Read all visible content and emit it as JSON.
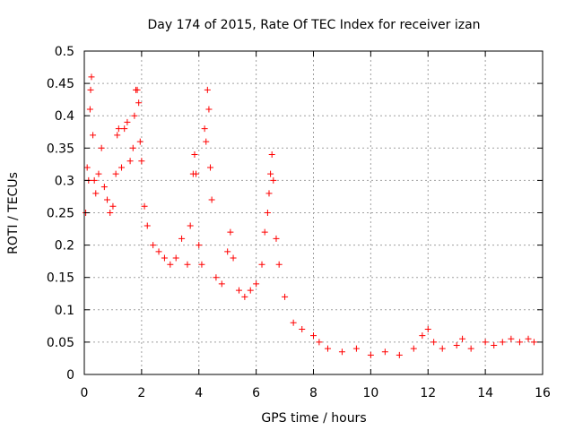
{
  "chart_data": {
    "type": "scatter",
    "title": "Day 174 of 2015, Rate Of TEC Index for receiver izan",
    "xlabel": "GPS time / hours",
    "ylabel": "ROTI / TECUs",
    "xlim": [
      0,
      16
    ],
    "ylim": [
      0,
      0.5
    ],
    "xticks": [
      0,
      2,
      4,
      6,
      8,
      10,
      12,
      14,
      16
    ],
    "yticks": [
      0,
      0.05,
      0.1,
      0.15,
      0.2,
      0.25,
      0.3,
      0.35,
      0.4,
      0.45,
      0.5
    ],
    "grid": true,
    "marker": "+",
    "colors": {
      "points": "#ff0000",
      "grid": "#a0a0a0",
      "axes": "#000000"
    },
    "series": [
      {
        "name": "ROTI",
        "points": [
          [
            0.05,
            0.25
          ],
          [
            0.1,
            0.32
          ],
          [
            0.15,
            0.3
          ],
          [
            0.2,
            0.41
          ],
          [
            0.22,
            0.44
          ],
          [
            0.25,
            0.46
          ],
          [
            0.3,
            0.37
          ],
          [
            0.35,
            0.3
          ],
          [
            0.4,
            0.28
          ],
          [
            0.5,
            0.31
          ],
          [
            0.6,
            0.35
          ],
          [
            0.7,
            0.29
          ],
          [
            0.8,
            0.27
          ],
          [
            0.9,
            0.25
          ],
          [
            1.0,
            0.26
          ],
          [
            1.1,
            0.31
          ],
          [
            1.15,
            0.37
          ],
          [
            1.2,
            0.38
          ],
          [
            1.3,
            0.32
          ],
          [
            1.4,
            0.38
          ],
          [
            1.5,
            0.39
          ],
          [
            1.6,
            0.33
          ],
          [
            1.7,
            0.35
          ],
          [
            1.75,
            0.4
          ],
          [
            1.8,
            0.44
          ],
          [
            1.85,
            0.44
          ],
          [
            1.9,
            0.42
          ],
          [
            1.95,
            0.36
          ],
          [
            2.0,
            0.33
          ],
          [
            2.1,
            0.26
          ],
          [
            2.2,
            0.23
          ],
          [
            2.4,
            0.2
          ],
          [
            2.6,
            0.19
          ],
          [
            2.8,
            0.18
          ],
          [
            3.0,
            0.17
          ],
          [
            3.2,
            0.18
          ],
          [
            3.4,
            0.21
          ],
          [
            3.6,
            0.17
          ],
          [
            3.7,
            0.23
          ],
          [
            3.8,
            0.31
          ],
          [
            3.85,
            0.34
          ],
          [
            3.9,
            0.31
          ],
          [
            4.0,
            0.2
          ],
          [
            4.1,
            0.17
          ],
          [
            4.2,
            0.38
          ],
          [
            4.25,
            0.36
          ],
          [
            4.3,
            0.44
          ],
          [
            4.35,
            0.41
          ],
          [
            4.4,
            0.32
          ],
          [
            4.45,
            0.27
          ],
          [
            4.6,
            0.15
          ],
          [
            4.8,
            0.14
          ],
          [
            5.0,
            0.19
          ],
          [
            5.1,
            0.22
          ],
          [
            5.2,
            0.18
          ],
          [
            5.4,
            0.13
          ],
          [
            5.6,
            0.12
          ],
          [
            5.8,
            0.13
          ],
          [
            6.0,
            0.14
          ],
          [
            6.2,
            0.17
          ],
          [
            6.3,
            0.22
          ],
          [
            6.4,
            0.25
          ],
          [
            6.45,
            0.28
          ],
          [
            6.5,
            0.31
          ],
          [
            6.55,
            0.34
          ],
          [
            6.6,
            0.3
          ],
          [
            6.7,
            0.21
          ],
          [
            6.8,
            0.17
          ],
          [
            7.0,
            0.12
          ],
          [
            7.3,
            0.08
          ],
          [
            7.6,
            0.07
          ],
          [
            8.0,
            0.06
          ],
          [
            8.2,
            0.05
          ],
          [
            8.5,
            0.04
          ],
          [
            9.0,
            0.035
          ],
          [
            9.5,
            0.04
          ],
          [
            10.0,
            0.03
          ],
          [
            10.5,
            0.035
          ],
          [
            11.0,
            0.03
          ],
          [
            11.5,
            0.04
          ],
          [
            11.8,
            0.06
          ],
          [
            12.0,
            0.07
          ],
          [
            12.2,
            0.05
          ],
          [
            12.5,
            0.04
          ],
          [
            13.0,
            0.045
          ],
          [
            13.2,
            0.055
          ],
          [
            13.5,
            0.04
          ],
          [
            14.0,
            0.05
          ],
          [
            14.3,
            0.045
          ],
          [
            14.6,
            0.05
          ],
          [
            14.9,
            0.055
          ],
          [
            15.2,
            0.05
          ],
          [
            15.5,
            0.055
          ],
          [
            15.7,
            0.05
          ]
        ]
      }
    ]
  }
}
